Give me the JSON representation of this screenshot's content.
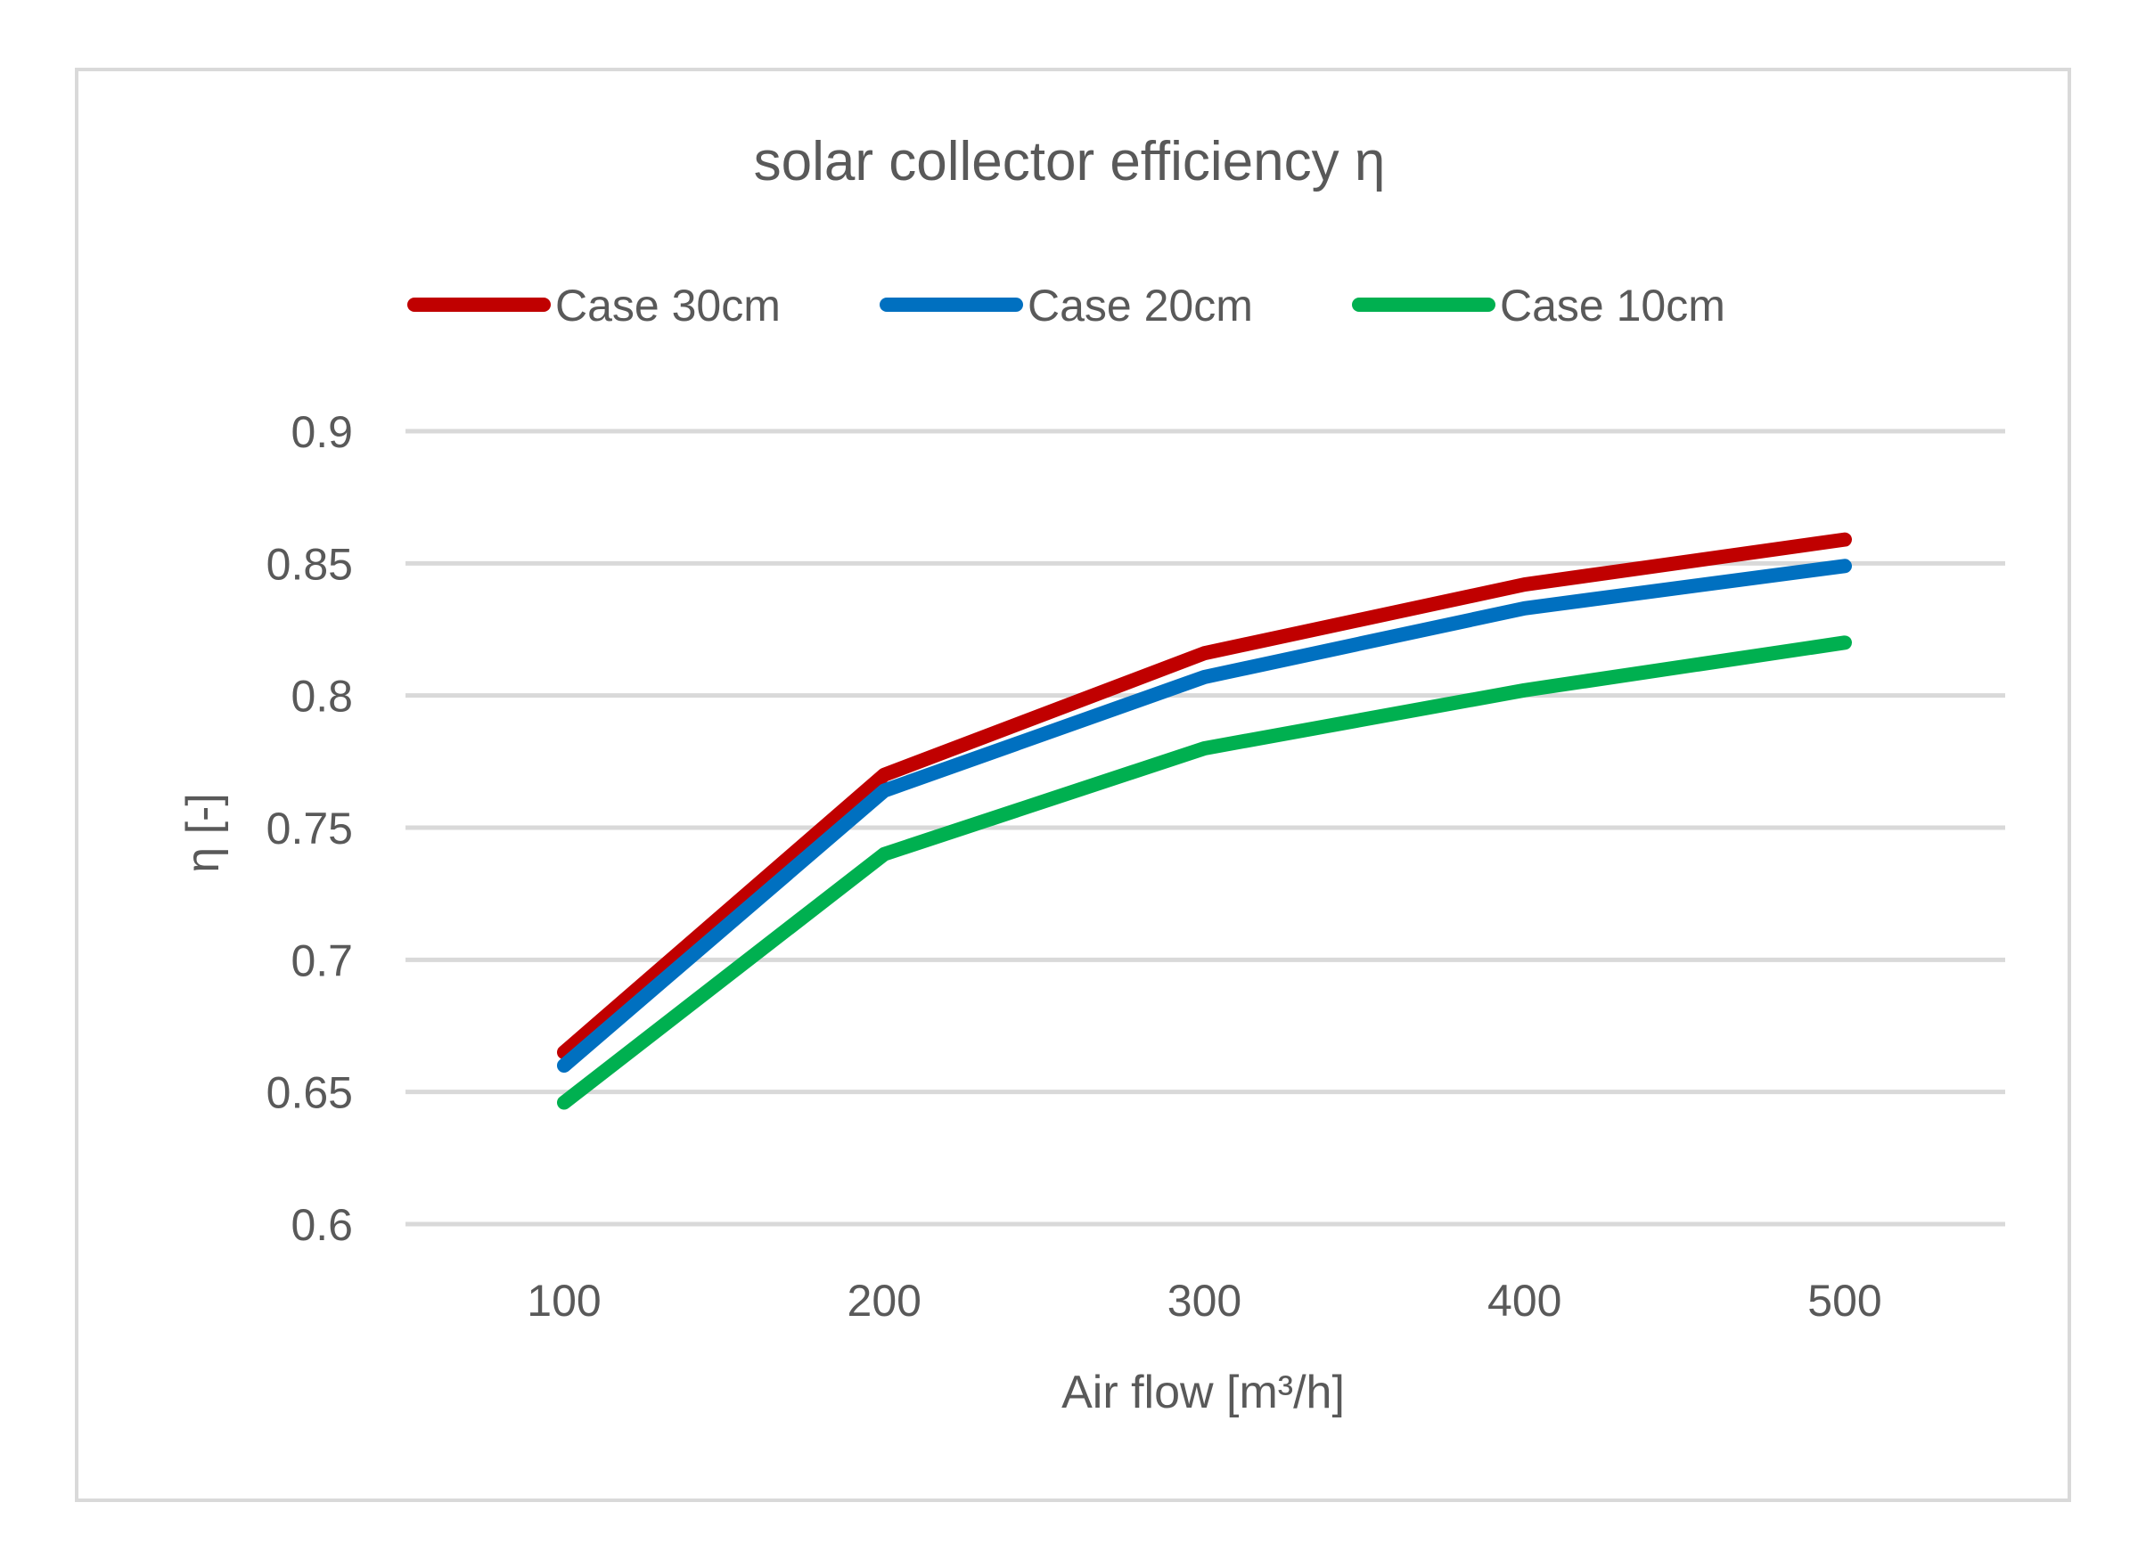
{
  "chart_data": {
    "type": "line",
    "title": "solar collector efficiency η",
    "xlabel": "Air flow [m³/h]",
    "ylabel": "η [-]",
    "categories": [
      "100",
      "200",
      "300",
      "400",
      "500"
    ],
    "x": [
      100,
      200,
      300,
      400,
      500
    ],
    "ylim": [
      0.6,
      0.9
    ],
    "yticks": [
      0.6,
      0.65,
      0.7,
      0.75,
      0.8,
      0.85,
      0.9
    ],
    "ytick_labels": [
      "0.6",
      "0.65",
      "0.7",
      "0.75",
      "0.8",
      "0.85",
      "0.9"
    ],
    "grid": true,
    "legend_position": "top",
    "series": [
      {
        "name": "Case 30cm",
        "color": "#c00000",
        "values": [
          0.665,
          0.77,
          0.816,
          0.842,
          0.859
        ]
      },
      {
        "name": "Case 20cm",
        "color": "#0070c0",
        "values": [
          0.66,
          0.764,
          0.807,
          0.833,
          0.849
        ]
      },
      {
        "name": "Case 10cm",
        "color": "#00b050",
        "values": [
          0.646,
          0.74,
          0.78,
          0.802,
          0.82
        ]
      }
    ]
  }
}
